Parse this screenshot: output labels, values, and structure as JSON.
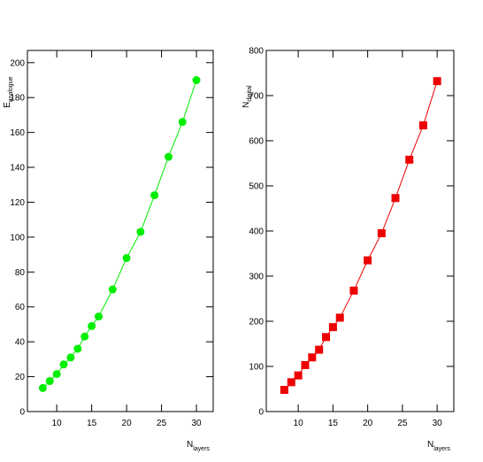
{
  "chart_data": [
    {
      "type": "line",
      "marker": "circle",
      "color": "#00ee00",
      "x_label": "N",
      "x_label_sub": "layers",
      "y_label": "E",
      "y_label_sub": "analogue",
      "x": [
        8,
        9,
        10,
        11,
        12,
        13,
        14,
        15,
        16,
        18,
        20,
        22,
        24,
        26,
        28,
        30
      ],
      "series": [
        {
          "color": "#00ee00",
          "values": [
            13.5,
            17.5,
            21.5,
            27,
            31,
            36,
            43,
            49,
            54.5,
            70,
            88,
            103,
            124,
            146,
            166,
            190
          ]
        }
      ],
      "xlim": [
        5.8,
        32.4
      ],
      "xticks": [
        10,
        15,
        20,
        25,
        30
      ],
      "ylim": [
        0,
        207
      ],
      "yticks": [
        0,
        20,
        40,
        60,
        80,
        100,
        120,
        140,
        160,
        180,
        200
      ]
    },
    {
      "type": "line",
      "marker": "square",
      "color": "#ee0000",
      "x_label": "N",
      "x_label_sub": "layers",
      "y_label": "N",
      "y_label_sub": "digital",
      "x": [
        8,
        9,
        10,
        11,
        12,
        13,
        14,
        15,
        16,
        18,
        20,
        22,
        24,
        26,
        28,
        30
      ],
      "series": [
        {
          "color": "#ee0000",
          "values": [
            48,
            65,
            80,
            103,
            120,
            137,
            165,
            187,
            208,
            268,
            335,
            395,
            473,
            558,
            634,
            732
          ]
        }
      ],
      "xlim": [
        5.4,
        32.4
      ],
      "xticks": [
        10,
        15,
        20,
        25,
        30
      ],
      "ylim": [
        0,
        800
      ],
      "yticks": [
        0,
        100,
        200,
        300,
        400,
        500,
        600,
        700,
        800
      ]
    }
  ]
}
